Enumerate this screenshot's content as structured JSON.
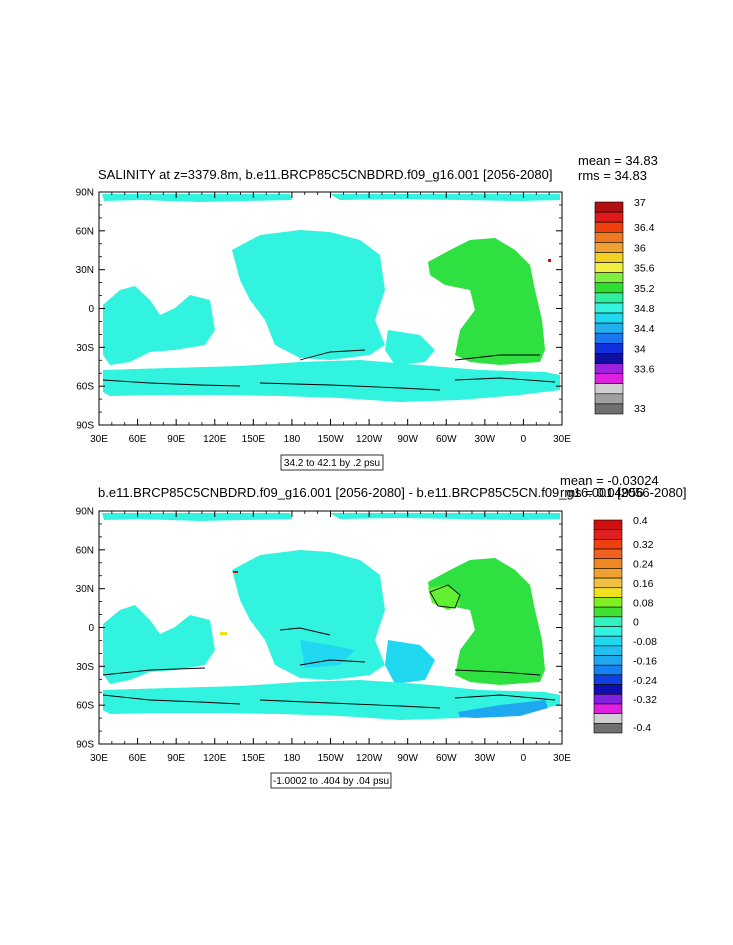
{
  "colors": {
    "cyan": "#32f2e0",
    "green": "#2ee040",
    "light_green": "#60f030",
    "deep_cyan": "#20d8f0",
    "blue": "#1ea8f0",
    "yellow": "#f0e020",
    "red": "#d01010"
  },
  "lon_ticks": [
    "30E",
    "60E",
    "90E",
    "120E",
    "150E",
    "180",
    "150W",
    "120W",
    "90W",
    "60W",
    "30W",
    "0",
    "30E"
  ],
  "lat_ticks": [
    "90N",
    "60N",
    "30N",
    "0",
    "30S",
    "60S",
    "90S"
  ],
  "panels": [
    {
      "title": "SALINITY at z=3379.8m, b.e11.BRCP85C5CNBDRD.f09_g16.001 [2056-2080]",
      "mean": "mean = 34.83",
      "rms": "rms = 34.83",
      "contour_info": "34.2 to 42.1 by .2 psu",
      "colorbar_labels": [
        "37",
        "36.4",
        "36",
        "35.6",
        "35.2",
        "34.8",
        "34.4",
        "34",
        "33.6",
        "33"
      ],
      "colorbar_colors": [
        "#b01010",
        "#e01818",
        "#f04010",
        "#f07820",
        "#f0a030",
        "#f0d020",
        "#f0f040",
        "#80f040",
        "#30e030",
        "#30f0a0",
        "#32f2e0",
        "#20d8f0",
        "#20b0f0",
        "#1878f0",
        "#1030e0",
        "#1010a0",
        "#a020e0",
        "#e020e0",
        "#d0d0d0",
        "#a0a0a0",
        "#707070"
      ]
    },
    {
      "title": "b.e11.BRCP85C5CNBDRD.f09_g16.001 [2056-2080] - b.e11.BRCP85C5CN.f09_g16.001 [2056-2080]",
      "mean": "mean = -0.03024",
      "rms": "rms = 0.04956",
      "contour_info": "-1.0002 to .404 by .04 psu",
      "colorbar_labels": [
        "0.4",
        "0.32",
        "0.24",
        "0.16",
        "0.08",
        "0",
        "-0.08",
        "-0.16",
        "-0.24",
        "-0.32",
        "-0.4"
      ],
      "colorbar_colors": [
        "#d01010",
        "#e02020",
        "#f04010",
        "#f06020",
        "#f08820",
        "#f0a030",
        "#f0c040",
        "#f0e020",
        "#80f020",
        "#40e030",
        "#32f2c0",
        "#32f2e0",
        "#20d8f0",
        "#20c0f0",
        "#1ea8f0",
        "#1880f0",
        "#1040e0",
        "#1010b0",
        "#8020e0",
        "#e020e0",
        "#d0d0d0",
        "#707070"
      ]
    }
  ]
}
